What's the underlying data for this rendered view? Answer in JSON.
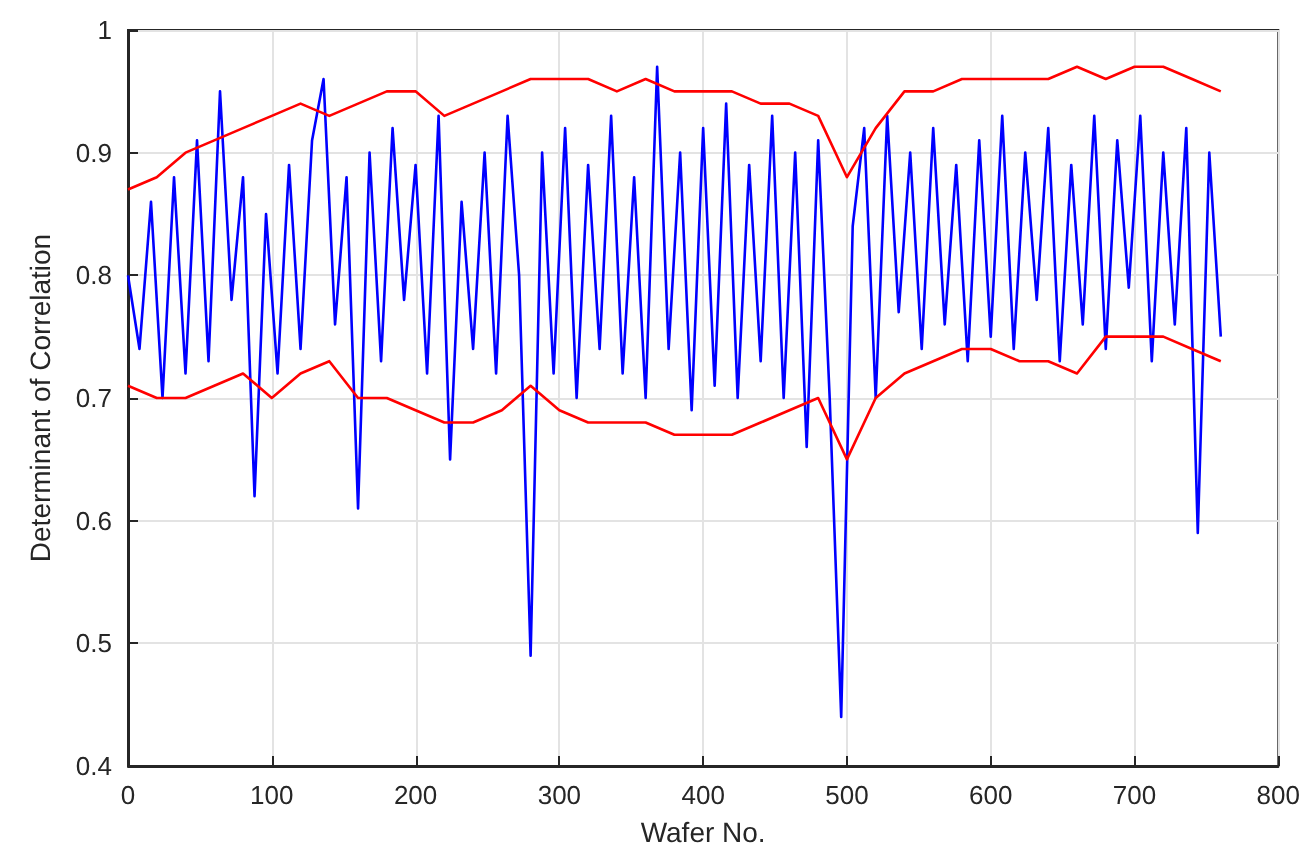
{
  "chart_data": {
    "type": "line",
    "xlabel": "Wafer No.",
    "ylabel": "Determinant of Correlation",
    "xlim": [
      0,
      800
    ],
    "xticks": [
      0,
      100,
      200,
      300,
      400,
      500,
      600,
      700,
      800
    ],
    "ylim": [
      0.4,
      1
    ],
    "yticks": [
      0.4,
      0.5,
      0.6,
      0.7,
      0.8,
      0.9,
      1
    ],
    "grid": true,
    "marker": "none",
    "line_style": "solid",
    "series": [
      {
        "color": "#0000ff",
        "x": [
          0,
          8,
          16,
          24,
          32,
          40,
          48,
          56,
          64,
          72,
          80,
          88,
          96,
          104,
          112,
          120,
          128,
          136,
          144,
          152,
          160,
          168,
          176,
          184,
          192,
          200,
          208,
          216,
          224,
          232,
          240,
          248,
          256,
          264,
          272,
          280,
          288,
          296,
          304,
          312,
          320,
          328,
          336,
          344,
          352,
          360,
          368,
          376,
          384,
          392,
          400,
          408,
          416,
          424,
          432,
          440,
          448,
          456,
          464,
          472,
          480,
          488,
          496,
          504,
          512,
          520,
          528,
          536,
          544,
          552,
          560,
          568,
          576,
          584,
          592,
          600,
          608,
          616,
          624,
          632,
          640,
          648,
          656,
          664,
          672,
          680,
          688,
          696,
          704,
          712,
          720,
          728,
          736,
          744,
          752,
          760
        ],
        "values": [
          0.8,
          0.74,
          0.86,
          0.7,
          0.88,
          0.72,
          0.91,
          0.73,
          0.95,
          0.78,
          0.88,
          0.62,
          0.85,
          0.72,
          0.89,
          0.74,
          0.91,
          0.96,
          0.76,
          0.88,
          0.61,
          0.9,
          0.73,
          0.92,
          0.78,
          0.89,
          0.72,
          0.93,
          0.65,
          0.86,
          0.74,
          0.9,
          0.72,
          0.93,
          0.8,
          0.49,
          0.9,
          0.72,
          0.92,
          0.7,
          0.89,
          0.74,
          0.93,
          0.72,
          0.88,
          0.7,
          0.97,
          0.74,
          0.9,
          0.69,
          0.92,
          0.71,
          0.94,
          0.7,
          0.89,
          0.73,
          0.93,
          0.7,
          0.9,
          0.66,
          0.91,
          0.7,
          0.44,
          0.84,
          0.92,
          0.7,
          0.93,
          0.77,
          0.9,
          0.74,
          0.92,
          0.76,
          0.89,
          0.73,
          0.91,
          0.75,
          0.93,
          0.74,
          0.9,
          0.78,
          0.92,
          0.73,
          0.89,
          0.76,
          0.93,
          0.74,
          0.91,
          0.79,
          0.93,
          0.73,
          0.9,
          0.76,
          0.92,
          0.59,
          0.9,
          0.75
        ]
      },
      {
        "color": "#ff0000",
        "x": [
          0,
          20,
          40,
          60,
          80,
          100,
          120,
          140,
          160,
          180,
          200,
          220,
          240,
          260,
          280,
          300,
          320,
          340,
          360,
          380,
          400,
          420,
          440,
          460,
          480,
          500,
          520,
          540,
          560,
          580,
          600,
          620,
          640,
          660,
          680,
          700,
          720,
          740,
          760
        ],
        "values": [
          0.87,
          0.88,
          0.9,
          0.91,
          0.92,
          0.93,
          0.94,
          0.93,
          0.94,
          0.95,
          0.95,
          0.93,
          0.94,
          0.95,
          0.96,
          0.96,
          0.96,
          0.95,
          0.96,
          0.95,
          0.95,
          0.95,
          0.94,
          0.94,
          0.93,
          0.88,
          0.92,
          0.95,
          0.95,
          0.96,
          0.96,
          0.96,
          0.96,
          0.97,
          0.96,
          0.97,
          0.97,
          0.96,
          0.95
        ]
      },
      {
        "color": "#ff0000",
        "x": [
          0,
          20,
          40,
          60,
          80,
          100,
          120,
          140,
          160,
          180,
          200,
          220,
          240,
          260,
          280,
          300,
          320,
          340,
          360,
          380,
          400,
          420,
          440,
          460,
          480,
          500,
          520,
          540,
          560,
          580,
          600,
          620,
          640,
          660,
          680,
          700,
          720,
          740,
          760
        ],
        "values": [
          0.71,
          0.7,
          0.7,
          0.71,
          0.72,
          0.7,
          0.72,
          0.73,
          0.7,
          0.7,
          0.69,
          0.68,
          0.68,
          0.69,
          0.71,
          0.69,
          0.68,
          0.68,
          0.68,
          0.67,
          0.67,
          0.67,
          0.68,
          0.69,
          0.7,
          0.65,
          0.7,
          0.72,
          0.73,
          0.74,
          0.74,
          0.73,
          0.73,
          0.72,
          0.75,
          0.75,
          0.75,
          0.74,
          0.73
        ]
      }
    ]
  }
}
